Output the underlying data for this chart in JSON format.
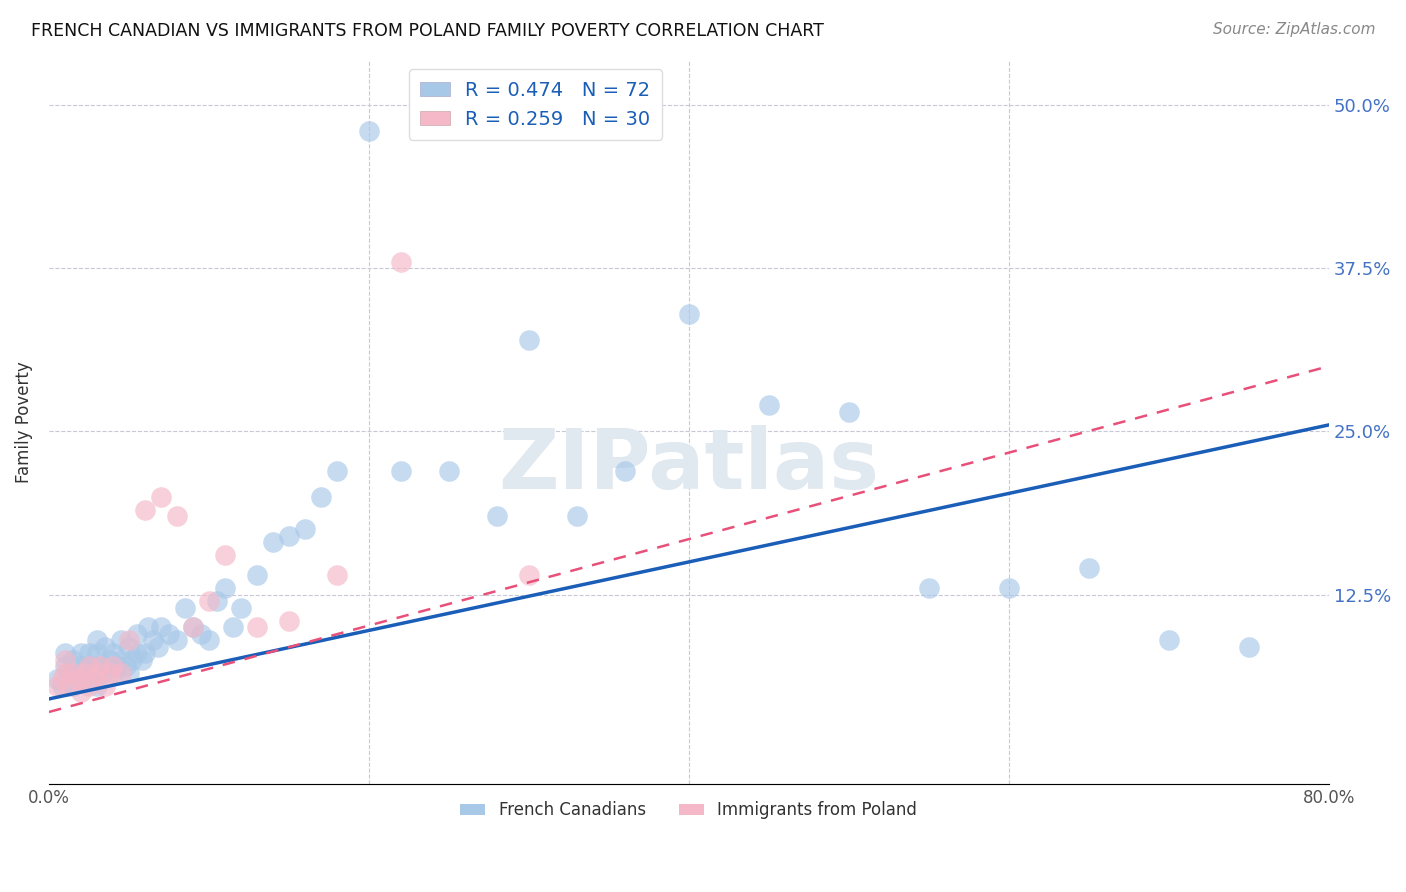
{
  "title": "FRENCH CANADIAN VS IMMIGRANTS FROM POLAND FAMILY POVERTY CORRELATION CHART",
  "source": "Source: ZipAtlas.com",
  "ylabel": "Family Poverty",
  "yticks": [
    0.0,
    0.125,
    0.25,
    0.375,
    0.5
  ],
  "ytick_labels": [
    "",
    "12.5%",
    "25.0%",
    "37.5%",
    "50.0%"
  ],
  "xlim": [
    0.0,
    0.8
  ],
  "ylim": [
    -0.02,
    0.535
  ],
  "legend_label1": "R = 0.474   N = 72",
  "legend_label2": "R = 0.259   N = 30",
  "legend_series1": "French Canadians",
  "legend_series2": "Immigrants from Poland",
  "color_blue": "#a8c8e8",
  "color_pink": "#f4b8c8",
  "color_blue_line": "#1a5eb8",
  "color_pink_line": "#e8507a",
  "blue_x": [
    0.005,
    0.008,
    0.01,
    0.01,
    0.012,
    0.015,
    0.015,
    0.018,
    0.02,
    0.02,
    0.02,
    0.022,
    0.025,
    0.025,
    0.025,
    0.028,
    0.03,
    0.03,
    0.03,
    0.03,
    0.033,
    0.035,
    0.035,
    0.038,
    0.04,
    0.04,
    0.042,
    0.045,
    0.045,
    0.048,
    0.05,
    0.05,
    0.052,
    0.055,
    0.055,
    0.058,
    0.06,
    0.062,
    0.065,
    0.068,
    0.07,
    0.075,
    0.08,
    0.085,
    0.09,
    0.095,
    0.1,
    0.105,
    0.11,
    0.115,
    0.12,
    0.13,
    0.14,
    0.15,
    0.16,
    0.17,
    0.18,
    0.2,
    0.22,
    0.25,
    0.28,
    0.3,
    0.33,
    0.36,
    0.4,
    0.45,
    0.5,
    0.55,
    0.6,
    0.65,
    0.7,
    0.75
  ],
  "blue_y": [
    0.06,
    0.055,
    0.07,
    0.08,
    0.065,
    0.055,
    0.075,
    0.065,
    0.06,
    0.07,
    0.08,
    0.065,
    0.06,
    0.07,
    0.08,
    0.065,
    0.055,
    0.07,
    0.08,
    0.09,
    0.065,
    0.07,
    0.085,
    0.075,
    0.065,
    0.08,
    0.07,
    0.075,
    0.09,
    0.07,
    0.065,
    0.085,
    0.075,
    0.08,
    0.095,
    0.075,
    0.08,
    0.1,
    0.09,
    0.085,
    0.1,
    0.095,
    0.09,
    0.115,
    0.1,
    0.095,
    0.09,
    0.12,
    0.13,
    0.1,
    0.115,
    0.14,
    0.165,
    0.17,
    0.175,
    0.2,
    0.22,
    0.48,
    0.22,
    0.22,
    0.185,
    0.32,
    0.185,
    0.22,
    0.34,
    0.27,
    0.265,
    0.13,
    0.13,
    0.145,
    0.09,
    0.085
  ],
  "pink_x": [
    0.005,
    0.008,
    0.01,
    0.01,
    0.012,
    0.015,
    0.018,
    0.02,
    0.022,
    0.025,
    0.025,
    0.028,
    0.03,
    0.032,
    0.035,
    0.038,
    0.04,
    0.045,
    0.05,
    0.06,
    0.07,
    0.08,
    0.09,
    0.1,
    0.11,
    0.13,
    0.15,
    0.18,
    0.22,
    0.3
  ],
  "pink_y": [
    0.055,
    0.06,
    0.065,
    0.075,
    0.055,
    0.065,
    0.06,
    0.05,
    0.065,
    0.055,
    0.07,
    0.06,
    0.065,
    0.07,
    0.055,
    0.065,
    0.07,
    0.065,
    0.09,
    0.19,
    0.2,
    0.185,
    0.1,
    0.12,
    0.155,
    0.1,
    0.105,
    0.14,
    0.38,
    0.14
  ],
  "blue_line_x0": 0.0,
  "blue_line_y0": 0.045,
  "blue_line_x1": 0.8,
  "blue_line_y1": 0.255,
  "pink_line_x0": 0.0,
  "pink_line_y0": 0.035,
  "pink_line_x1": 0.8,
  "pink_line_y1": 0.3,
  "background_color": "#ffffff",
  "grid_color": "#c8c8d8"
}
